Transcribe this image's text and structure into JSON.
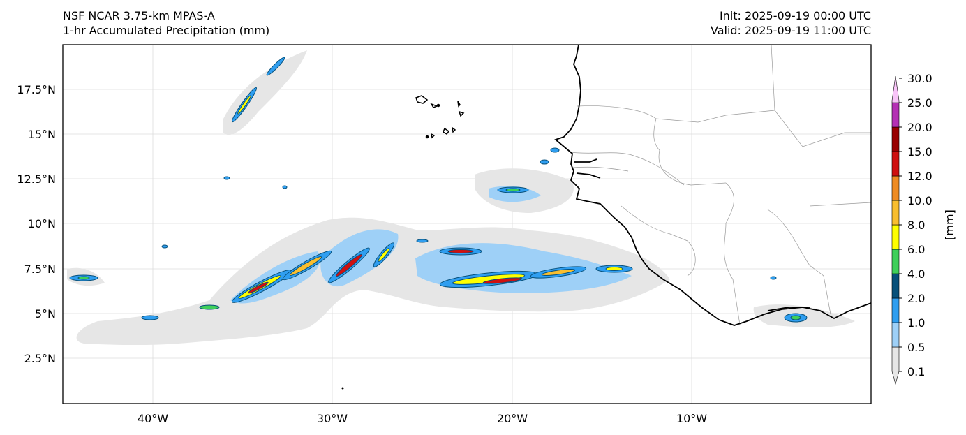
{
  "header": {
    "model": "NSF NCAR 3.75-km MPAS-A",
    "field": "1-hr Accumulated Precipitation (mm)",
    "init": "Init: 2025-09-19 00:00 UTC",
    "valid": "Valid: 2025-09-19 11:00 UTC"
  },
  "axes": {
    "lat_labels": [
      "17.5°N",
      "15°N",
      "12.5°N",
      "10°N",
      "7.5°N",
      "5°N",
      "2.5°N"
    ],
    "lon_labels": [
      "40°W",
      "30°W",
      "20°W",
      "10°W"
    ]
  },
  "colorbar": {
    "unit_label": "[mm]",
    "levels": [
      "0.1",
      "0.5",
      "1.0",
      "2.0",
      "4.0",
      "6.0",
      "8.0",
      "10.0",
      "12.0",
      "15.0",
      "20.0",
      "25.0",
      "30.0"
    ],
    "colors": [
      "#e6e6e6",
      "#9ed0f7",
      "#2f9ef0",
      "#07507a",
      "#3fd05a",
      "#ffff00",
      "#f9be2e",
      "#ee8b22",
      "#cf1010",
      "#990000",
      "#b430b4",
      "#f8c4f8"
    ]
  },
  "map": {
    "coastline_color": "#000000",
    "border_color": "#9a9a9a",
    "grid_color": "#dcdcdc"
  }
}
